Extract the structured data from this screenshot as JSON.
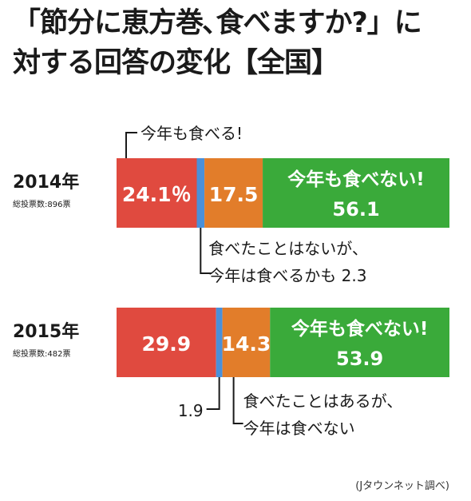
{
  "title": {
    "line1": "「節分に恵方巻､食べますか?」に",
    "line2": "対する回答の変化【全国】"
  },
  "chart_data": {
    "type": "bar",
    "stacked": true,
    "orientation": "horizontal",
    "unit": "%",
    "colors": {
      "eat_this_year": "#e04a3f",
      "maybe_this_year": "#4a90d9",
      "not_this_year_have_eaten": "#e27d2a",
      "will_not_eat": "#3aaa3a"
    },
    "rows": [
      {
        "year_label": "2014年",
        "votes_label": "総投票数:896票",
        "segments": [
          {
            "key": "eat_this_year",
            "value": 24.1,
            "label": "24.1％"
          },
          {
            "key": "maybe_this_year",
            "value": 2.3,
            "label": ""
          },
          {
            "key": "not_this_year_have_eaten",
            "value": 17.5,
            "label": "17.5"
          },
          {
            "key": "will_not_eat",
            "value": 56.1,
            "label": "56.1",
            "title": "今年も食べない!"
          }
        ]
      },
      {
        "year_label": "2015年",
        "votes_label": "総投票数:482票",
        "segments": [
          {
            "key": "eat_this_year",
            "value": 29.9,
            "label": "29.9"
          },
          {
            "key": "maybe_this_year",
            "value": 1.9,
            "label": ""
          },
          {
            "key": "not_this_year_have_eaten",
            "value": 14.3,
            "label": "14.3"
          },
          {
            "key": "will_not_eat",
            "value": 53.9,
            "label": "53.9",
            "title": "今年も食べない!"
          }
        ]
      }
    ],
    "callouts": {
      "eat_this_year_2014": "今年も食べる!",
      "maybe_2014_line1": "食べたことはないが、",
      "maybe_2014_line2": "今年は食べるかも 2.3",
      "maybe_2015_value": "1.9",
      "have_eaten_2015_line1": "食べたことはあるが、",
      "have_eaten_2015_line2": "今年は食べない"
    },
    "credit": "(Jタウンネット調べ)"
  }
}
